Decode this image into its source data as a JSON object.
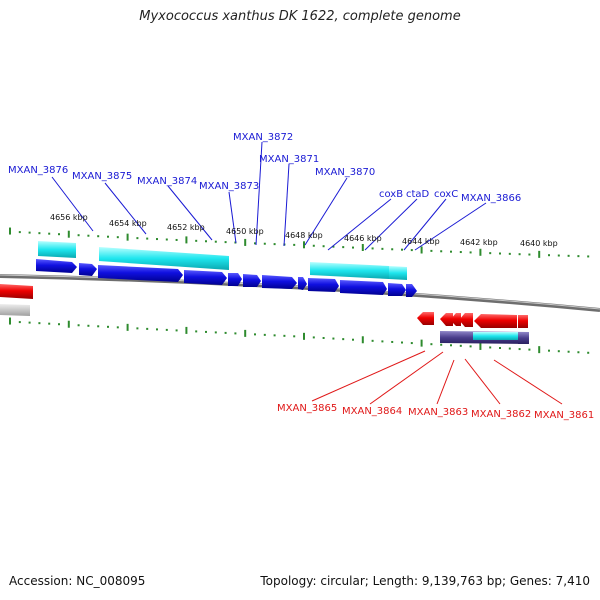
{
  "title": "Myxococcus xanthus DK 1622, complete genome",
  "accession": "Accession: NC_008095",
  "topology": "Topology: circular; Length: 9,139,763 bp; Genes: 7,410",
  "colors": {
    "forward_gene": "#0d0dd6",
    "reverse_gene": "#e00000",
    "cyan_feature": "#18e0e8",
    "purple_feature": "#4a3e8c",
    "backbone": "#8a8a8a",
    "tick": "#2e8b2e",
    "forward_label": "#1a1ad4",
    "reverse_label": "#e01818"
  },
  "scale_labels": [
    "4656 kbp",
    "4654 kbp",
    "4652 kbp",
    "4650 kbp",
    "4648 kbp",
    "4646 kbp",
    "4644 kbp",
    "4642 kbp",
    "4640 kbp"
  ],
  "forward_labels": [
    "MXAN_3876",
    "MXAN_3875",
    "MXAN_3874",
    "MXAN_3873",
    "MXAN_3872",
    "MXAN_3871",
    "MXAN_3870",
    "coxB",
    "ctaD",
    "coxC",
    "MXAN_3866"
  ],
  "reverse_labels": [
    "MXAN_3865",
    "MXAN_3864",
    "MXAN_3863",
    "MXAN_3862",
    "MXAN_3861"
  ]
}
